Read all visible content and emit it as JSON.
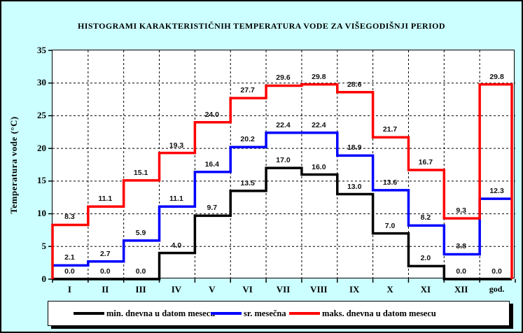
{
  "title": "HISTOGRAMI KARAKTERISTIČNIH TEMPERATURA VODE ZA VIŠEGODIŠNJI PERIOD",
  "y_axis_title": "Temperatura vode (°C)",
  "colors": {
    "background": "#CCFFFF",
    "plot_background": "#FFFFFF",
    "grid": "#000000",
    "min_series": "#000000",
    "avg_series": "#0000FF",
    "max_series": "#FF0000"
  },
  "chart_data": {
    "type": "line",
    "subtype": "step-histogram",
    "categories": [
      "I",
      "II",
      "III",
      "IV",
      "V",
      "VI",
      "VII",
      "VIII",
      "IX",
      "X",
      "XI",
      "XII",
      "god."
    ],
    "series": [
      {
        "name": "min. dnevna u datom mesecu",
        "color": "#000000",
        "values": [
          0.0,
          0.0,
          0.0,
          4.0,
          9.7,
          13.5,
          17.0,
          16.0,
          13.0,
          7.0,
          2.0,
          0.0,
          0.0
        ]
      },
      {
        "name": "sr. mesečna",
        "color": "#0000FF",
        "values": [
          2.1,
          2.7,
          5.9,
          11.1,
          16.4,
          20.2,
          22.4,
          22.4,
          18.9,
          13.6,
          8.2,
          3.8,
          12.3
        ]
      },
      {
        "name": "maks. dnevna u datom mesecu",
        "color": "#FF0000",
        "values": [
          8.3,
          11.1,
          15.1,
          19.3,
          24.0,
          27.7,
          29.6,
          29.8,
          28.6,
          21.7,
          16.7,
          9.3,
          29.8
        ]
      }
    ],
    "ylim": [
      0,
      35
    ],
    "yticks": [
      0,
      5,
      10,
      15,
      20,
      25,
      30,
      35
    ],
    "grid": true,
    "grid_style": "dashed",
    "legend_position": "bottom",
    "value_labels_decimals": 1
  }
}
